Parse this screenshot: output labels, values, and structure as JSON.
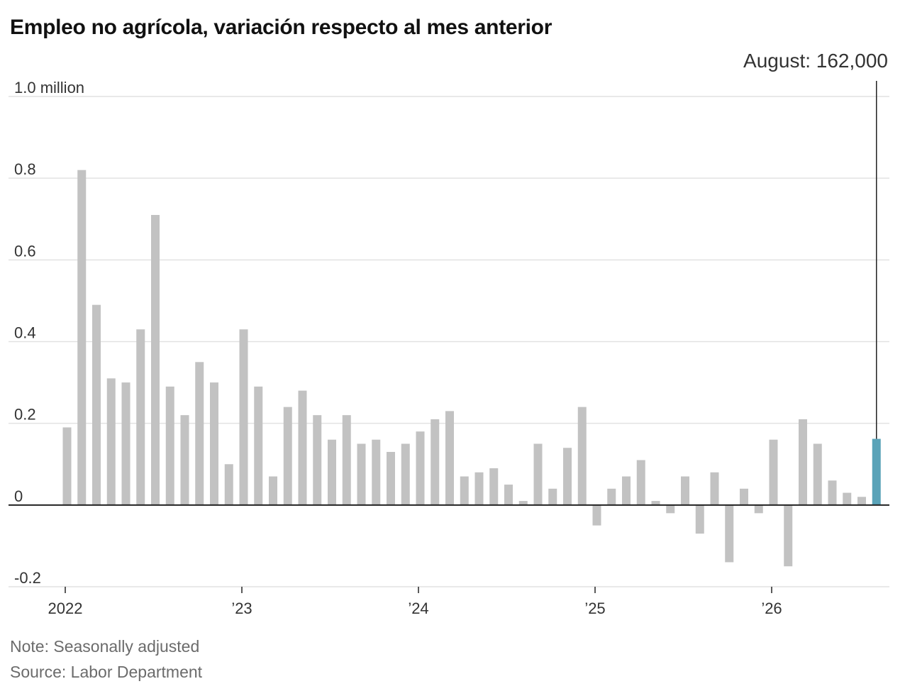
{
  "title": "Empleo no agrícola, variación respecto al mes anterior",
  "note": "Note: Seasonally adjusted",
  "source": "Source: Labor Department",
  "annotation": "August: 162,000",
  "colors": {
    "bar": "#c2c2c2",
    "highlight": "#5aa3b8",
    "grid": "#e2e2e2",
    "axis": "#222222",
    "text": "#333333"
  },
  "chart_data": {
    "type": "bar",
    "unit_label": "million",
    "ylim": [
      -0.2,
      1.0
    ],
    "y_ticks": [
      {
        "value": 1.0,
        "label": "1.0 million"
      },
      {
        "value": 0.8,
        "label": "0.8"
      },
      {
        "value": 0.6,
        "label": "0.6"
      },
      {
        "value": 0.4,
        "label": "0.4"
      },
      {
        "value": 0.2,
        "label": "0.2"
      },
      {
        "value": 0,
        "label": "0"
      },
      {
        "value": -0.2,
        "label": "-0.2"
      }
    ],
    "x_ticks": [
      {
        "index": 0,
        "label": "2022"
      },
      {
        "index": 12,
        "label": "’23"
      },
      {
        "index": 24,
        "label": "’24"
      },
      {
        "index": 36,
        "label": "’25"
      },
      {
        "index": 48,
        "label": "’26"
      }
    ],
    "grid": true,
    "highlight_index": 55,
    "values": [
      0.19,
      0.82,
      0.49,
      0.31,
      0.3,
      0.43,
      0.71,
      0.29,
      0.22,
      0.35,
      0.3,
      0.1,
      0.43,
      0.29,
      0.07,
      0.24,
      0.28,
      0.22,
      0.16,
      0.22,
      0.15,
      0.16,
      0.13,
      0.15,
      0.18,
      0.21,
      0.23,
      0.07,
      0.08,
      0.09,
      0.05,
      0.01,
      0.15,
      0.04,
      0.14,
      0.24,
      -0.05,
      0.04,
      0.07,
      0.11,
      0.01,
      -0.02,
      0.07,
      -0.07,
      0.08,
      -0.14,
      0.04,
      -0.02,
      0.16,
      -0.15,
      0.21,
      0.15,
      0.06,
      0.03,
      0.02,
      0.162
    ]
  }
}
